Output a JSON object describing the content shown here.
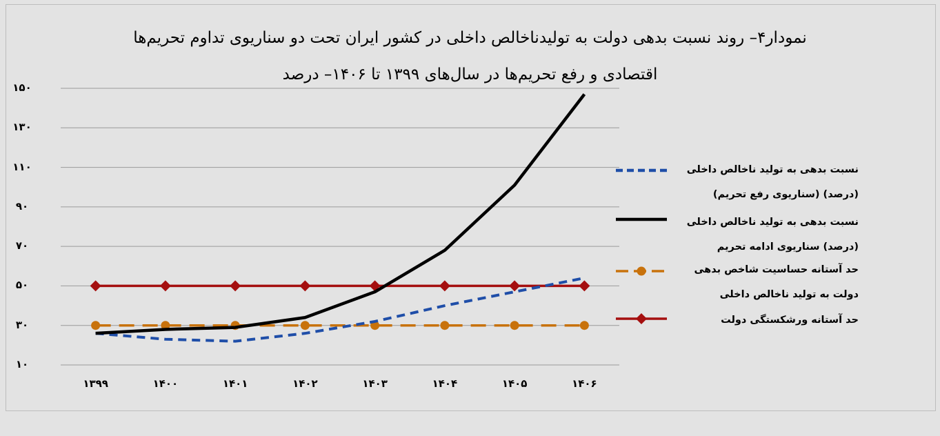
{
  "chart_data": {
    "type": "line",
    "title_line1": "نمودار۴– روند نسبت بدهی دولت به تولیدناخالص داخلی در کشور ایران  تحت دو سناریوی تداوم تحریم‌ها",
    "title_line2": "اقتصادی و رفع تحریم‌ها در سال‌های ۱۳۹۹ تا ۱۴۰۶– درصد",
    "categories": [
      "۱۳۹۹",
      "۱۴۰۰",
      "۱۴۰۱",
      "۱۴۰۲",
      "۱۴۰۳",
      "۱۴۰۴",
      "۱۴۰۵",
      "۱۴۰۶"
    ],
    "y_ticks": [
      {
        "value": 10,
        "label": "۱۰"
      },
      {
        "value": 30,
        "label": "۳۰"
      },
      {
        "value": 50,
        "label": "۵۰"
      },
      {
        "value": 70,
        "label": "۷۰"
      },
      {
        "value": 90,
        "label": "۹۰"
      },
      {
        "value": 110,
        "label": "۱۱۰"
      },
      {
        "value": 130,
        "label": "۱۳۰"
      },
      {
        "value": 150,
        "label": "۱۵۰"
      }
    ],
    "ylim": [
      10,
      150
    ],
    "grid": true,
    "legend_position": "right",
    "series": [
      {
        "name": "نسبت بدهی به تولید ناخالص داخلی (درصد) (سناریوی رفع تحریم)",
        "color": "#1f4ea8",
        "style": "dashed",
        "marker": "none",
        "values": [
          26,
          23,
          22,
          26,
          32,
          40,
          47,
          54
        ]
      },
      {
        "name": "نسبت بدهی به تولید ناخالص داخلی (درصد) سناریوی ادامه تحریم",
        "color": "#000000",
        "style": "solid",
        "marker": "none",
        "values": [
          26,
          28,
          29,
          34,
          47,
          68,
          101,
          147
        ]
      },
      {
        "name": "حد آستانه حساسیت شاخص بدهی دولت به تولید ناخالص داخلی",
        "color": "#c8720c",
        "style": "dashed",
        "marker": "circle",
        "values": [
          30,
          30,
          30,
          30,
          30,
          30,
          30,
          30
        ]
      },
      {
        "name": "حد آستانه ورشکستگی دولت",
        "color": "#a50f0f",
        "style": "solid",
        "marker": "diamond",
        "values": [
          50,
          50,
          50,
          50,
          50,
          50,
          50,
          50
        ]
      }
    ]
  }
}
